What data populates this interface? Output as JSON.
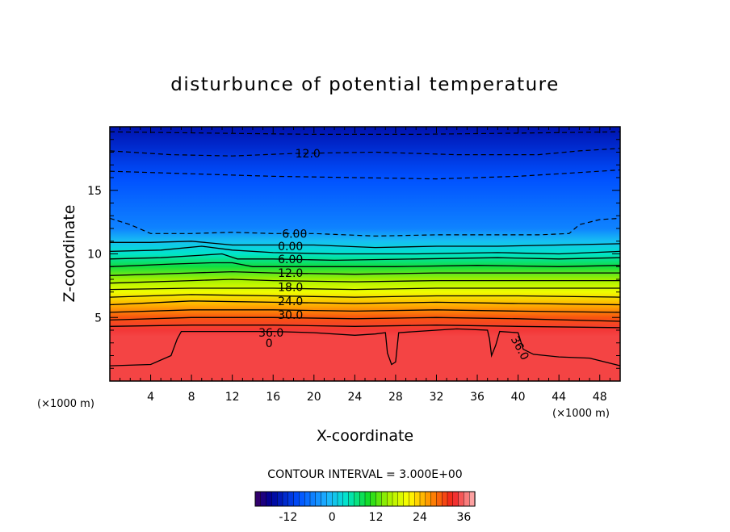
{
  "chart_data": {
    "type": "contour",
    "title": "disturbunce of potential temperature",
    "xlabel": "X-coordinate",
    "ylabel": "Z-coordinate",
    "x_unit": "(×1000 m)",
    "xlim": [
      0,
      50
    ],
    "ylim": [
      0,
      20
    ],
    "x_ticks": [
      "4",
      "8",
      "12",
      "16",
      "20",
      "24",
      "28",
      "32",
      "36",
      "40",
      "44",
      "48"
    ],
    "y_ticks": [
      "5",
      "10",
      "15"
    ],
    "contour_interval_text": "CONTOUR INTERVAL = 3.000E+00",
    "colorbar": {
      "min": -21,
      "max": 39,
      "ticks": [
        "-12",
        "0",
        "12",
        "24",
        "36"
      ]
    },
    "contour_labels": [
      {
        "text": "12.0",
        "x": 19.4,
        "z": 17.9
      },
      {
        "text": "6.00",
        "x": 18.1,
        "z": 11.6
      },
      {
        "text": "0.00",
        "x": 17.7,
        "z": 10.6
      },
      {
        "text": "6.00",
        "x": 17.7,
        "z": 9.6
      },
      {
        "text": "12.0",
        "x": 17.7,
        "z": 8.5
      },
      {
        "text": "18.0",
        "x": 17.7,
        "z": 7.4
      },
      {
        "text": "24.0",
        "x": 17.7,
        "z": 6.3
      },
      {
        "text": "30.0",
        "x": 17.7,
        "z": 5.2
      },
      {
        "text": "36.0",
        "x": 15.8,
        "z": 3.8
      },
      {
        "text": "0",
        "x": 15.6,
        "z": 3.0
      },
      {
        "text": "36.0",
        "x": 40.2,
        "z": 2.6
      }
    ],
    "profile": [
      {
        "z": 0,
        "value": 36
      },
      {
        "z": 3.5,
        "value": 36.5
      },
      {
        "z": 4,
        "value": 34
      },
      {
        "z": 5,
        "value": 30
      },
      {
        "z": 6,
        "value": 25
      },
      {
        "z": 7,
        "value": 20
      },
      {
        "z": 8,
        "value": 15
      },
      {
        "z": 9,
        "value": 9
      },
      {
        "z": 10,
        "value": 4
      },
      {
        "z": 11,
        "value": 0
      },
      {
        "z": 12,
        "value": -5
      },
      {
        "z": 14,
        "value": -7
      },
      {
        "z": 16,
        "value": -9
      },
      {
        "z": 18,
        "value": -12
      },
      {
        "z": 20,
        "value": -15
      }
    ],
    "contours": [
      {
        "level": -15,
        "style": "dashed",
        "points": [
          [
            0,
            19.6
          ],
          [
            10,
            19.5
          ],
          [
            20,
            19.4
          ],
          [
            30,
            19.4
          ],
          [
            40,
            19.5
          ],
          [
            50,
            19.6
          ]
        ]
      },
      {
        "level": -12,
        "style": "dashed",
        "points": [
          [
            0,
            18.1
          ],
          [
            6,
            17.8
          ],
          [
            12,
            17.7
          ],
          [
            18,
            17.9
          ],
          [
            26,
            18.0
          ],
          [
            34,
            17.8
          ],
          [
            42,
            17.8
          ],
          [
            46,
            18.1
          ],
          [
            50,
            18.3
          ]
        ]
      },
      {
        "level": -9,
        "style": "dashed",
        "points": [
          [
            0,
            16.5
          ],
          [
            8,
            16.3
          ],
          [
            16,
            16.1
          ],
          [
            24,
            16.0
          ],
          [
            32,
            15.9
          ],
          [
            40,
            16.1
          ],
          [
            46,
            16.4
          ],
          [
            50,
            16.6
          ]
        ]
      },
      {
        "level": -6,
        "style": "dashed",
        "points": [
          [
            0,
            12.8
          ],
          [
            2,
            12.3
          ],
          [
            4,
            11.6
          ],
          [
            8,
            11.6
          ],
          [
            12,
            11.7
          ],
          [
            16,
            11.6
          ],
          [
            20,
            11.6
          ],
          [
            26,
            11.4
          ],
          [
            32,
            11.5
          ],
          [
            38,
            11.5
          ],
          [
            42,
            11.5
          ],
          [
            45,
            11.6
          ],
          [
            46,
            12.3
          ],
          [
            48,
            12.7
          ],
          [
            50,
            12.8
          ]
        ]
      },
      {
        "level": 0,
        "style": "solid",
        "points": [
          [
            0,
            10.9
          ],
          [
            4,
            10.9
          ],
          [
            8,
            11.0
          ],
          [
            12,
            10.7
          ],
          [
            16,
            10.7
          ],
          [
            20,
            10.7
          ],
          [
            26,
            10.5
          ],
          [
            32,
            10.6
          ],
          [
            38,
            10.6
          ],
          [
            44,
            10.7
          ],
          [
            50,
            10.8
          ]
        ]
      },
      {
        "level": 3,
        "style": "solid",
        "points": [
          [
            0,
            10.2
          ],
          [
            5,
            10.3
          ],
          [
            9,
            10.6
          ],
          [
            12,
            10.3
          ],
          [
            16,
            10.1
          ],
          [
            22,
            10.0
          ],
          [
            30,
            10.0
          ],
          [
            38,
            10.1
          ],
          [
            44,
            10.0
          ],
          [
            50,
            10.2
          ]
        ]
      },
      {
        "level": 6,
        "style": "solid",
        "points": [
          [
            0,
            9.6
          ],
          [
            5,
            9.7
          ],
          [
            9,
            9.9
          ],
          [
            11,
            10.0
          ],
          [
            12.5,
            9.6
          ],
          [
            16,
            9.6
          ],
          [
            22,
            9.5
          ],
          [
            30,
            9.6
          ],
          [
            38,
            9.7
          ],
          [
            44,
            9.6
          ],
          [
            50,
            9.7
          ]
        ]
      },
      {
        "level": 9,
        "style": "solid",
        "points": [
          [
            0,
            9.0
          ],
          [
            6,
            9.2
          ],
          [
            10,
            9.3
          ],
          [
            12,
            9.3
          ],
          [
            14,
            9.0
          ],
          [
            20,
            9.0
          ],
          [
            28,
            9.0
          ],
          [
            36,
            9.1
          ],
          [
            44,
            9.0
          ],
          [
            50,
            9.1
          ]
        ]
      },
      {
        "level": 12,
        "style": "solid",
        "points": [
          [
            0,
            8.3
          ],
          [
            8,
            8.5
          ],
          [
            12,
            8.6
          ],
          [
            16,
            8.5
          ],
          [
            24,
            8.4
          ],
          [
            32,
            8.5
          ],
          [
            40,
            8.5
          ],
          [
            50,
            8.5
          ]
        ]
      },
      {
        "level": 15,
        "style": "solid",
        "points": [
          [
            0,
            7.7
          ],
          [
            8,
            7.9
          ],
          [
            12,
            8.0
          ],
          [
            16,
            7.9
          ],
          [
            24,
            7.8
          ],
          [
            32,
            7.9
          ],
          [
            40,
            7.9
          ],
          [
            50,
            7.9
          ]
        ]
      },
      {
        "level": 18,
        "style": "solid",
        "points": [
          [
            0,
            7.2
          ],
          [
            8,
            7.3
          ],
          [
            16,
            7.3
          ],
          [
            24,
            7.2
          ],
          [
            32,
            7.3
          ],
          [
            40,
            7.3
          ],
          [
            50,
            7.3
          ]
        ]
      },
      {
        "level": 21,
        "style": "solid",
        "points": [
          [
            0,
            6.6
          ],
          [
            8,
            6.8
          ],
          [
            16,
            6.7
          ],
          [
            24,
            6.6
          ],
          [
            32,
            6.7
          ],
          [
            40,
            6.7
          ],
          [
            50,
            6.6
          ]
        ]
      },
      {
        "level": 24,
        "style": "solid",
        "points": [
          [
            0,
            6.0
          ],
          [
            8,
            6.3
          ],
          [
            16,
            6.2
          ],
          [
            24,
            6.1
          ],
          [
            32,
            6.2
          ],
          [
            40,
            6.1
          ],
          [
            50,
            6.0
          ]
        ]
      },
      {
        "level": 27,
        "style": "solid",
        "points": [
          [
            0,
            5.4
          ],
          [
            8,
            5.6
          ],
          [
            16,
            5.6
          ],
          [
            24,
            5.5
          ],
          [
            32,
            5.6
          ],
          [
            40,
            5.5
          ],
          [
            50,
            5.4
          ]
        ]
      },
      {
        "level": 30,
        "style": "solid",
        "points": [
          [
            0,
            4.8
          ],
          [
            8,
            5.0
          ],
          [
            16,
            5.0
          ],
          [
            24,
            4.9
          ],
          [
            32,
            5.0
          ],
          [
            40,
            4.9
          ],
          [
            50,
            4.7
          ]
        ]
      },
      {
        "level": 33,
        "style": "solid",
        "points": [
          [
            0,
            4.3
          ],
          [
            8,
            4.4
          ],
          [
            16,
            4.4
          ],
          [
            24,
            4.3
          ],
          [
            32,
            4.4
          ],
          [
            40,
            4.3
          ],
          [
            50,
            4.2
          ]
        ]
      },
      {
        "level": 36,
        "style": "solid",
        "points": [
          [
            0,
            1.2
          ],
          [
            4,
            1.3
          ],
          [
            6,
            2.0
          ],
          [
            6.6,
            3.3
          ],
          [
            7,
            3.9
          ],
          [
            12,
            3.9
          ],
          [
            16,
            3.9
          ],
          [
            20,
            3.8
          ],
          [
            24,
            3.6
          ],
          [
            26,
            3.7
          ],
          [
            27,
            3.8
          ],
          [
            27.2,
            2.2
          ],
          [
            27.6,
            1.3
          ],
          [
            28,
            1.5
          ],
          [
            28.3,
            3.8
          ],
          [
            32,
            4.0
          ],
          [
            34,
            4.1
          ],
          [
            37,
            4.0
          ],
          [
            37.2,
            3.3
          ],
          [
            37.4,
            2.0
          ],
          [
            37.8,
            2.8
          ],
          [
            38.2,
            3.9
          ],
          [
            40,
            3.8
          ],
          [
            40.5,
            2.5
          ],
          [
            41.5,
            2.1
          ],
          [
            44,
            1.9
          ],
          [
            47,
            1.8
          ],
          [
            50,
            1.2
          ]
        ]
      }
    ]
  }
}
